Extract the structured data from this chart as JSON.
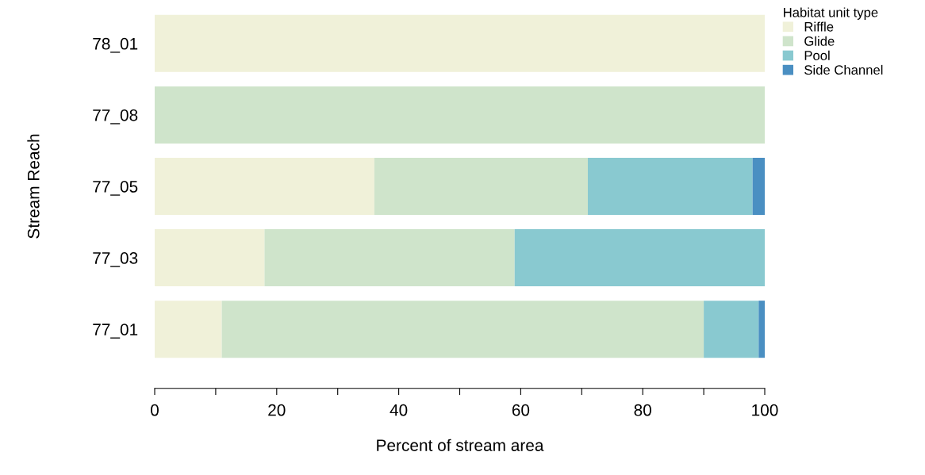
{
  "chart_data": {
    "type": "bar",
    "orientation": "horizontal",
    "stacked": true,
    "xlabel": "Percent of stream area",
    "ylabel": "Stream Reach",
    "legend_title": "Habitat unit type",
    "legend": "top right",
    "categories": [
      "78_01",
      "77_08",
      "77_05",
      "77_03",
      "77_01"
    ],
    "series": [
      {
        "name": "Riffle",
        "color": "#f0f1d9",
        "values": [
          100,
          0,
          36,
          18,
          11
        ]
      },
      {
        "name": "Glide",
        "color": "#cfe4cb",
        "values": [
          0,
          100,
          35,
          41,
          79
        ]
      },
      {
        "name": "Pool",
        "color": "#89c9d0",
        "values": [
          0,
          0,
          27,
          41,
          9
        ]
      },
      {
        "name": "Side Channel",
        "color": "#4a8fc2",
        "values": [
          0,
          0,
          2,
          0,
          1
        ]
      }
    ],
    "xlim": [
      0,
      100
    ],
    "xticks": [
      0,
      {
        "value": 10,
        "label": null
      },
      20,
      {
        "value": 30,
        "label": null
      },
      40,
      {
        "value": 50,
        "label": null
      },
      60,
      {
        "value": 70,
        "label": null
      },
      80,
      {
        "value": 90,
        "label": null
      },
      100
    ],
    "grid": false
  }
}
